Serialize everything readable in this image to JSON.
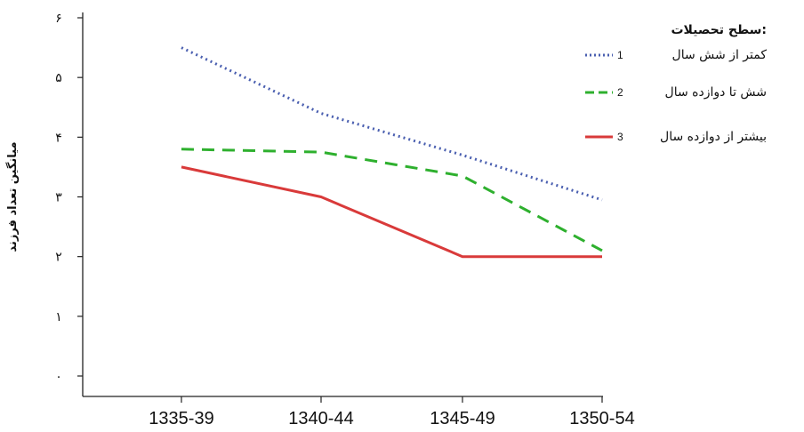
{
  "chart_data": {
    "type": "line",
    "categories": [
      "1335-39",
      "1340-44",
      "1345-49",
      "1350-54"
    ],
    "y_tick_labels": [
      "۰",
      "۱",
      "۲",
      "۳",
      "۴",
      "۵",
      "۶"
    ],
    "ylim": [
      0,
      6
    ],
    "ylabel": "میانگین تعداد فرزند",
    "xlabel": "",
    "grid": false,
    "legend": {
      "title": "سطح تحصیلات:",
      "placement": "top-right"
    },
    "series": [
      {
        "name": "کمتر از شش سال",
        "number": "1",
        "color": "#4a5fb0",
        "dash": "dotted",
        "values": [
          5.5,
          4.4,
          3.7,
          2.95
        ]
      },
      {
        "name": "شش تا دوازده سال",
        "number": "2",
        "color": "#2eb02e",
        "dash": "dashed",
        "values": [
          3.8,
          3.75,
          3.35,
          2.1
        ]
      },
      {
        "name": "بیشتر از دوازده سال",
        "number": "3",
        "color": "#d93a3a",
        "dash": "solid",
        "values": [
          3.5,
          3.0,
          2.0,
          2.0
        ]
      }
    ]
  }
}
